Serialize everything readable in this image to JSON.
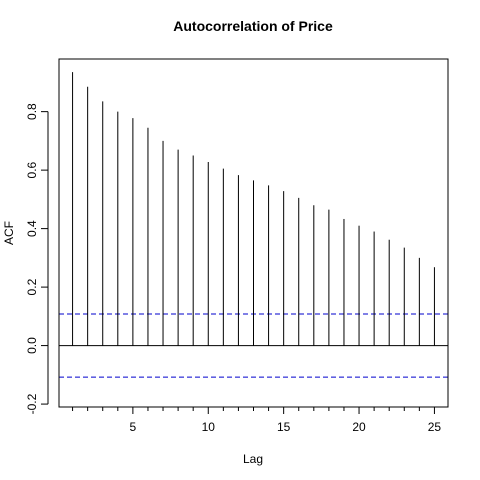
{
  "chart_data": {
    "type": "bar",
    "title": "Autocorrelation of Price",
    "xlabel": "Lag",
    "ylabel": "ACF",
    "xlim": [
      0.1,
      25.9
    ],
    "ylim": [
      -0.21,
      0.98
    ],
    "x_ticks": [
      5,
      10,
      15,
      20,
      25
    ],
    "y_ticks": [
      -0.2,
      0.0,
      0.2,
      0.4,
      0.6,
      0.8
    ],
    "y_tick_labels": [
      "-0.2",
      "0.0",
      "0.2",
      "0.4",
      "0.6",
      "0.8"
    ],
    "confidence_bound": 0.108,
    "confidence_line_color": "#0000cd",
    "zero_line": true,
    "grid": false,
    "series": [
      {
        "lag": [
          1,
          2,
          3,
          4,
          5,
          6,
          7,
          8,
          9,
          10,
          11,
          12,
          13,
          14,
          15,
          16,
          17,
          18,
          19,
          20,
          21,
          22,
          23,
          24,
          25
        ],
        "values": [
          0.935,
          0.885,
          0.835,
          0.8,
          0.778,
          0.745,
          0.7,
          0.67,
          0.65,
          0.628,
          0.605,
          0.583,
          0.565,
          0.548,
          0.528,
          0.505,
          0.48,
          0.465,
          0.433,
          0.41,
          0.39,
          0.362,
          0.335,
          0.3,
          0.268
        ]
      }
    ]
  }
}
